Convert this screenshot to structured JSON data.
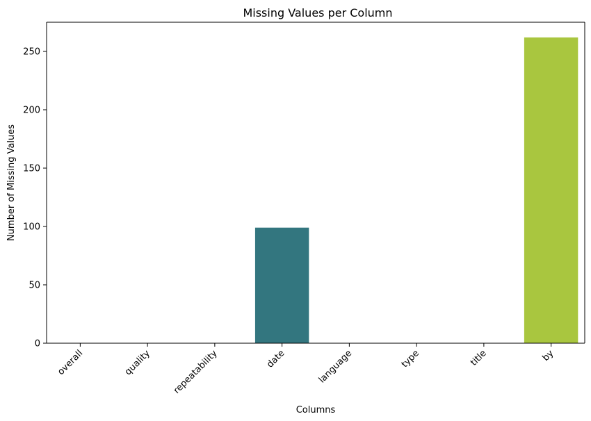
{
  "chart_data": {
    "type": "bar",
    "title": "Missing Values per Column",
    "xlabel": "Columns",
    "ylabel": "Number of Missing Values",
    "categories": [
      "overall",
      "quality",
      "repeatability",
      "date",
      "language",
      "type",
      "title",
      "by"
    ],
    "values": [
      0,
      0,
      0,
      99,
      0,
      0,
      0,
      262
    ],
    "colors": [
      "#46317e",
      "#46317e",
      "#3e4989",
      "#33767f",
      "#2a788e",
      "#22a884",
      "#7ad151",
      "#a9c63f"
    ],
    "ylim": [
      0,
      275
    ],
    "yticks": [
      0,
      50,
      100,
      150,
      200,
      250
    ],
    "grid": false,
    "legend": "none"
  }
}
